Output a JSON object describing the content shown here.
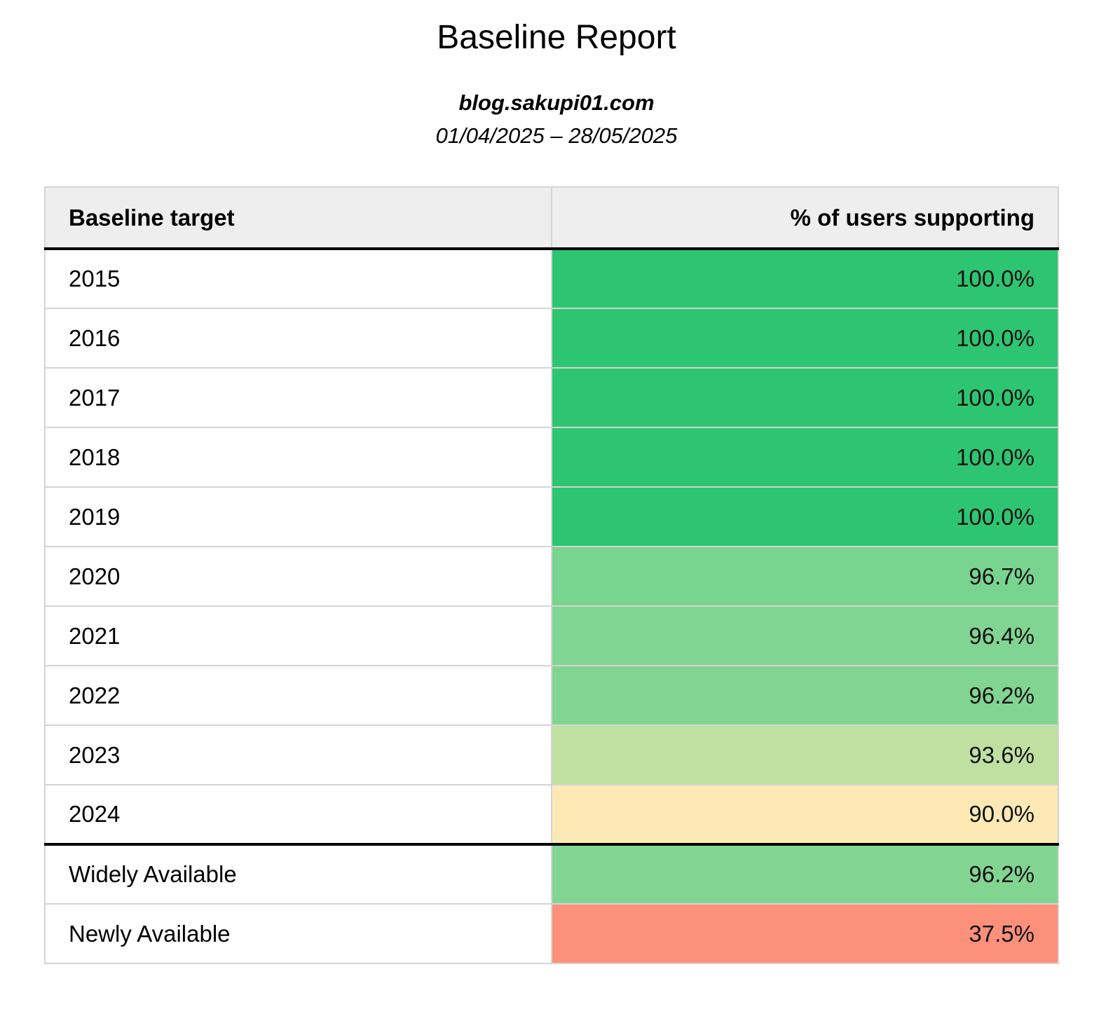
{
  "report": {
    "title": "Baseline Report",
    "site": "blog.sakupi01.com",
    "date_range": "01/04/2025 – 28/05/2025"
  },
  "table": {
    "headers": [
      "Baseline target",
      "% of users supporting"
    ],
    "rows": [
      {
        "target": "2015",
        "percent": "100.0%",
        "color": "#2ec572"
      },
      {
        "target": "2016",
        "percent": "100.0%",
        "color": "#2ec572"
      },
      {
        "target": "2017",
        "percent": "100.0%",
        "color": "#2ec572"
      },
      {
        "target": "2018",
        "percent": "100.0%",
        "color": "#2ec572"
      },
      {
        "target": "2019",
        "percent": "100.0%",
        "color": "#2ec572"
      },
      {
        "target": "2020",
        "percent": "96.7%",
        "color": "#78d48e"
      },
      {
        "target": "2021",
        "percent": "96.4%",
        "color": "#80d592"
      },
      {
        "target": "2022",
        "percent": "96.2%",
        "color": "#82d591"
      },
      {
        "target": "2023",
        "percent": "93.6%",
        "color": "#c0e0a2"
      },
      {
        "target": "2024",
        "percent": "90.0%",
        "color": "#fde9b4"
      }
    ],
    "summary": [
      {
        "target": "Widely Available",
        "percent": "96.2%",
        "color": "#82d591"
      },
      {
        "target": "Newly Available",
        "percent": "37.5%",
        "color": "#fd907b"
      }
    ]
  }
}
